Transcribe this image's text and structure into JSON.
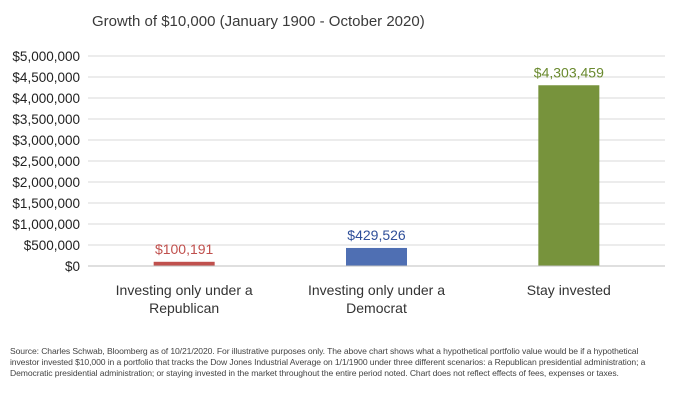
{
  "chart_data": {
    "type": "bar",
    "title": "Growth of $10,000 (January 1900 - October 2020)",
    "categories": [
      [
        "Investing only under a",
        "Republican"
      ],
      [
        "Investing only under a",
        "Democrat"
      ],
      [
        "Stay invested"
      ]
    ],
    "values": [
      100191,
      429526,
      4303459
    ],
    "data_labels": [
      "$100,191",
      "$429,526",
      "$4,303,459"
    ],
    "bar_colors": [
      "#c0504d",
      "#4f6fb3",
      "#77933c"
    ],
    "label_colors": [
      "#c0504d",
      "#2f4f9a",
      "#6a8a2f"
    ],
    "ylim": [
      0,
      5000000
    ],
    "yticks": [
      0,
      500000,
      1000000,
      1500000,
      2000000,
      2500000,
      3000000,
      3500000,
      4000000,
      4500000,
      5000000
    ],
    "ytick_labels": [
      "$0",
      "$500,000",
      "$1,000,000",
      "$1,500,000",
      "$2,000,000",
      "$2,500,000",
      "$3,000,000",
      "$3,500,000",
      "$4,000,000",
      "$4,500,000",
      "$5,000,000"
    ],
    "grid": true,
    "gridline_color": "#d9d9d9"
  },
  "footnote": "Source: Charles Schwab, Bloomberg as of 10/21/2020. For illustrative purposes only. The above chart shows what a hypothetical portfolio value would be if a hypothetical investor invested $10,000 in a portfolio that tracks the Dow Jones Industrial Average on 1/1/1900 under three different scenarios: a Republican presidential administration; a Democratic presidential administration; or staying invested in the market throughout the entire period noted. Chart does not reflect effects of fees, expenses or taxes."
}
